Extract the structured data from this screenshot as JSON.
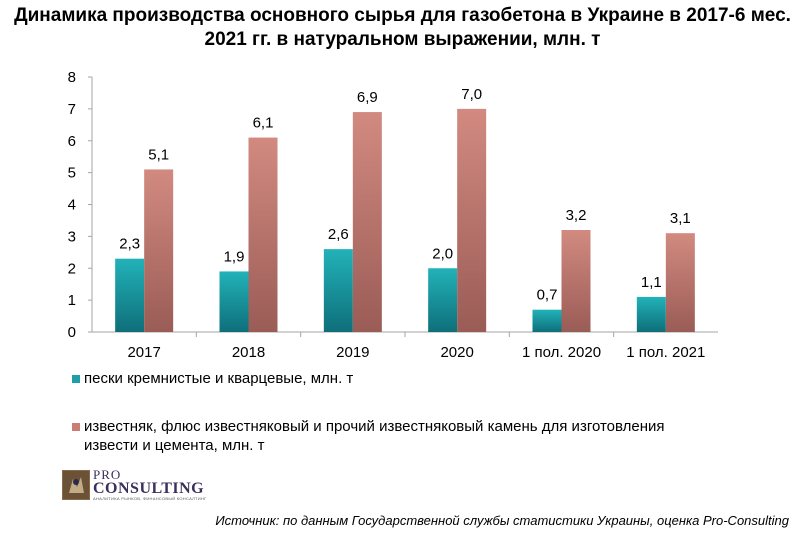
{
  "title": "Динамика производства основного сырья для газобетона в Украине в 2017-6 мес. 2021 гг. в натуральном выражении, млн. т",
  "chart_data": {
    "type": "bar",
    "categories": [
      "2017",
      "2018",
      "2019",
      "2020",
      "1 пол. 2020",
      "1 пол. 2021"
    ],
    "series": [
      {
        "name": "пески кремнистые и кварцевые, млн. т",
        "values": [
          2.3,
          1.9,
          2.6,
          2.0,
          0.7,
          1.1
        ],
        "labels": [
          "2,3",
          "1,9",
          "2,6",
          "2,0",
          "0,7",
          "1,1"
        ],
        "color": "#1f9ea6"
      },
      {
        "name": "известняк, флюс известняковый и прочий известняковый камень для изготовления извести и цемента, млн. т",
        "values": [
          5.1,
          6.1,
          6.9,
          7.0,
          3.2,
          3.1
        ],
        "labels": [
          "5,1",
          "6,1",
          "6,9",
          "7,0",
          "3,2",
          "3,1"
        ],
        "color": "#c97d74"
      }
    ],
    "ylim": [
      0,
      8
    ],
    "yticks": [
      "0",
      "1",
      "2",
      "3",
      "4",
      "5",
      "6",
      "7",
      "8"
    ],
    "grid": false,
    "legend": "bottom"
  },
  "legend": {
    "item1": "пески кремнистые и кварцевые, млн. т",
    "item2_line1": "известняк, флюс известняковый и прочий известняковый камень для изготовления",
    "item2_line2": "извести и цемента, млн. т"
  },
  "logo": {
    "pro": "PRO",
    "consulting": "CONSULTING",
    "sub": "АНАЛИТИКА РЫНКОВ, ФИНАНСОВЫЙ КОНСАЛТИНГ"
  },
  "source": "Источник: по данным Государственной службы статистики Украины, оценка Pro-Consulting"
}
